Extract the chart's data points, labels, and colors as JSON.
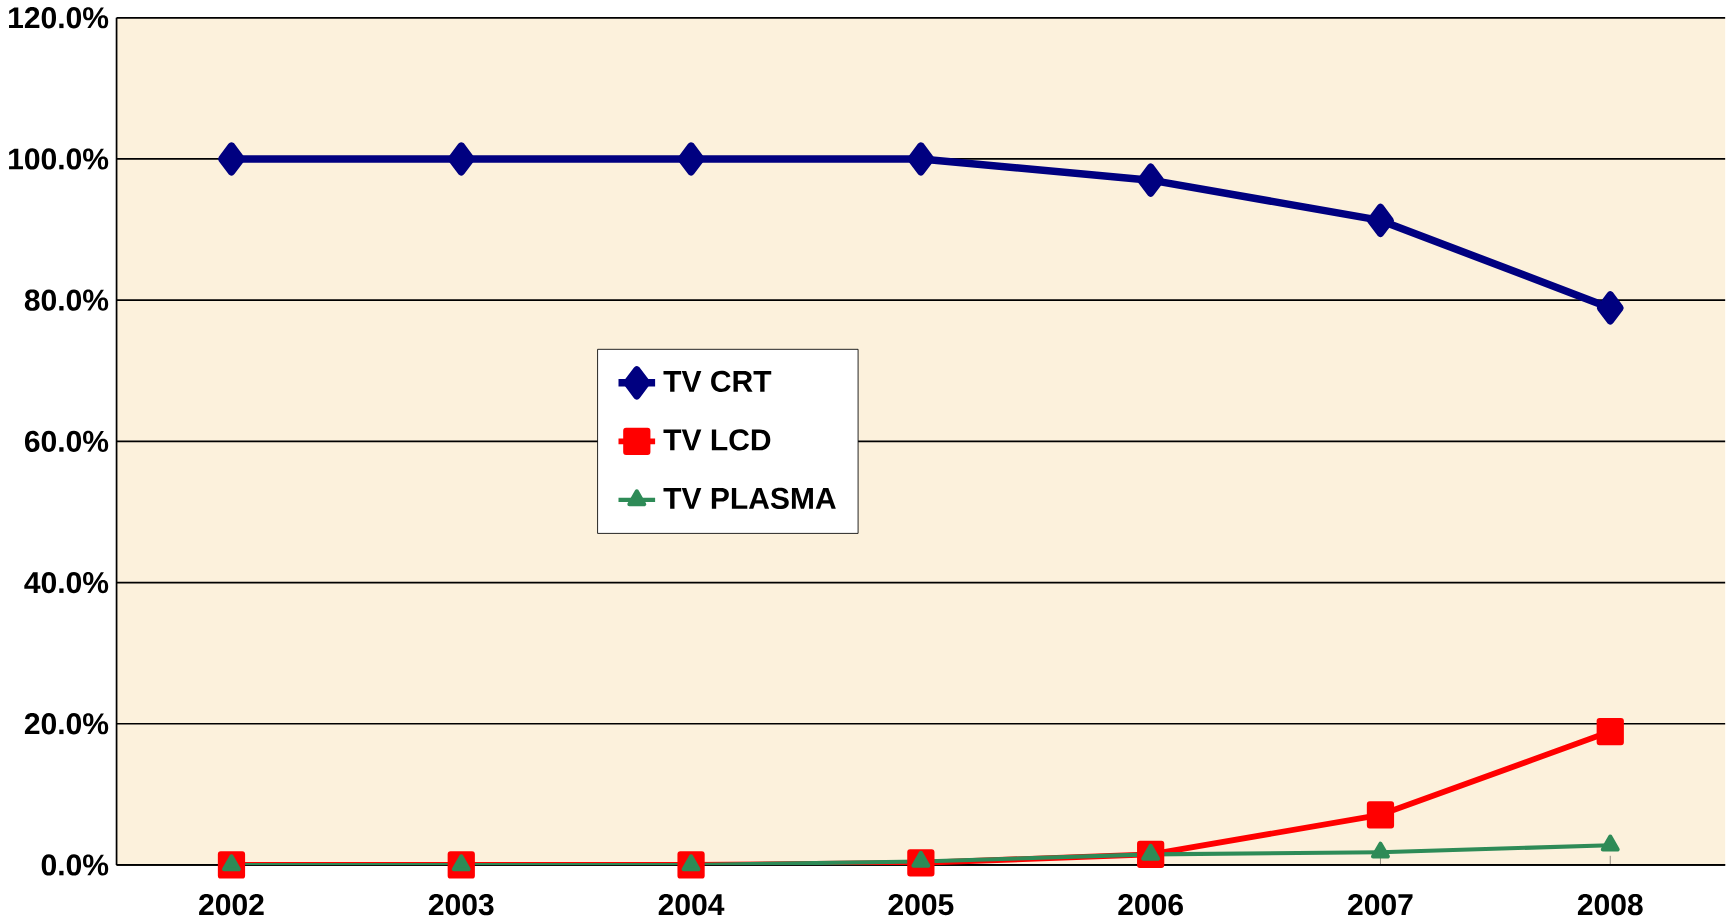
{
  "chart_data": {
    "type": "line",
    "categories": [
      "2002",
      "2003",
      "2004",
      "2005",
      "2006",
      "2007",
      "2008"
    ],
    "series": [
      {
        "name": "TV CRT",
        "color": "#000080",
        "marker": "diamond",
        "values": [
          100,
          100,
          100,
          100,
          97,
          91.3,
          78.9
        ]
      },
      {
        "name": "TV LCD",
        "color": "#ff0000",
        "marker": "square",
        "values": [
          0,
          0,
          0,
          0.3,
          1.5,
          7.1,
          18.9
        ]
      },
      {
        "name": "TV PLASMA",
        "color": "#2e8b57",
        "marker": "triangle",
        "values": [
          0,
          0,
          0,
          0.5,
          1.5,
          1.8,
          2.8
        ]
      }
    ],
    "ylim": [
      0,
      120
    ],
    "yticks": [
      {
        "value": 0,
        "label": "0.0%"
      },
      {
        "value": 20,
        "label": "20.0%"
      },
      {
        "value": 40,
        "label": "40.0%"
      },
      {
        "value": 60,
        "label": "60.0%"
      },
      {
        "value": 80,
        "label": "80.0%"
      },
      {
        "value": 100,
        "label": "100.0%"
      },
      {
        "value": 120,
        "label": "120.0%"
      }
    ],
    "grid": "y",
    "legend": "center",
    "line_style": "solid"
  }
}
